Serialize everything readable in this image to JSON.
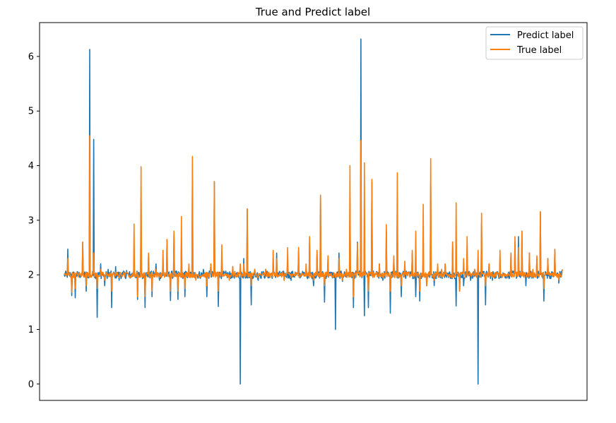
{
  "chart_data": {
    "type": "line",
    "title": "True and Predict label",
    "xlabel": "",
    "ylabel": "",
    "ylim": [
      -0.3,
      6.62
    ],
    "yticks": [
      0,
      1,
      2,
      3,
      4,
      5,
      6
    ],
    "xticks_visible": false,
    "grid": false,
    "legend_position": "top-right",
    "n_points": 1000,
    "baseline": 2.0,
    "series": [
      {
        "name": "Predict label",
        "color": "#1f77b4",
        "values": [
          2.0,
          2.47,
          1.62,
          1.58,
          2.0,
          2.6,
          1.7,
          6.13,
          4.48,
          1.22,
          2.2,
          1.8,
          2.1,
          1.4,
          2.15,
          1.9,
          2.0,
          2.08,
          1.94,
          2.3,
          1.55,
          3.45,
          1.4,
          2.35,
          1.6,
          2.2,
          1.9,
          2.3,
          2.62,
          1.53,
          2.75,
          1.55,
          2.6,
          1.6,
          2.1,
          3.76,
          2.0,
          1.95,
          2.1,
          1.6,
          2.2,
          3.7,
          1.42,
          2.3,
          2.0,
          1.95,
          2.15,
          2.0,
          0.0,
          2.3,
          3.2,
          1.45,
          2.1,
          1.9,
          2.0,
          2.1,
          1.95,
          2.2,
          2.4,
          2.0,
          1.9,
          2.3,
          1.9,
          2.05,
          2.45,
          2.0,
          2.1,
          2.6,
          1.8,
          2.4,
          3.43,
          1.5,
          2.3,
          2.0,
          1.0,
          2.4,
          1.88,
          2.1,
          3.4,
          1.4,
          2.6,
          6.32,
          1.25,
          1.4,
          3.7,
          2.0,
          2.2,
          1.9,
          2.8,
          1.3,
          2.3,
          3.4,
          1.6,
          2.2,
          2.05,
          2.4,
          1.6,
          1.52,
          2.5,
          1.8,
          3.7,
          1.8,
          2.1,
          2.1,
          2.2,
          1.95,
          2.6,
          1.43,
          1.7,
          1.8,
          2.5,
          1.9,
          2.1,
          0.0,
          2.95,
          1.45,
          2.2,
          1.9,
          2.05,
          2.3,
          2.0,
          2.0,
          2.4,
          2.6,
          2.7,
          2.8,
          1.8,
          2.4,
          2.0,
          2.3,
          3.15,
          1.52,
          2.3,
          2.0,
          2.45,
          1.85,
          2.1
        ]
      },
      {
        "name": "True label",
        "color": "#ff7f0e",
        "values": [
          2.0,
          2.3,
          1.68,
          1.75,
          2.0,
          2.6,
          1.8,
          4.55,
          2.4,
          1.75,
          2.1,
          1.9,
          2.0,
          1.7,
          2.05,
          1.95,
          2.0,
          2.05,
          1.95,
          2.93,
          1.6,
          3.98,
          1.6,
          2.4,
          1.7,
          2.1,
          1.95,
          2.45,
          2.65,
          1.7,
          2.8,
          1.7,
          3.07,
          1.75,
          2.2,
          4.17,
          1.9,
          1.95,
          2.0,
          1.8,
          2.2,
          3.71,
          1.7,
          2.55,
          2.0,
          1.9,
          2.15,
          2.0,
          2.2,
          2.2,
          3.21,
          1.8,
          2.1,
          1.95,
          2.0,
          2.1,
          1.98,
          2.45,
          2.3,
          2.0,
          1.9,
          2.5,
          1.95,
          2.05,
          2.5,
          2.0,
          2.2,
          2.7,
          1.9,
          2.45,
          3.46,
          1.8,
          2.35,
          2.0,
          1.95,
          2.3,
          1.9,
          2.1,
          4.0,
          1.6,
          2.58,
          4.46,
          4.05,
          1.7,
          3.75,
          2.0,
          2.2,
          1.95,
          2.92,
          1.7,
          2.35,
          3.87,
          1.8,
          2.25,
          2.05,
          2.45,
          2.8,
          1.7,
          3.29,
          1.8,
          4.13,
          1.9,
          2.2,
          2.1,
          2.2,
          2.0,
          2.6,
          3.32,
          1.7,
          2.3,
          2.7,
          2.0,
          2.1,
          2.45,
          3.13,
          1.8,
          2.2,
          1.95,
          2.05,
          2.45,
          2.0,
          2.0,
          2.4,
          2.7,
          2.5,
          2.8,
          2.0,
          2.4,
          2.1,
          2.35,
          3.16,
          1.75,
          2.3,
          2.0,
          2.47,
          1.9,
          2.1
        ]
      }
    ]
  }
}
